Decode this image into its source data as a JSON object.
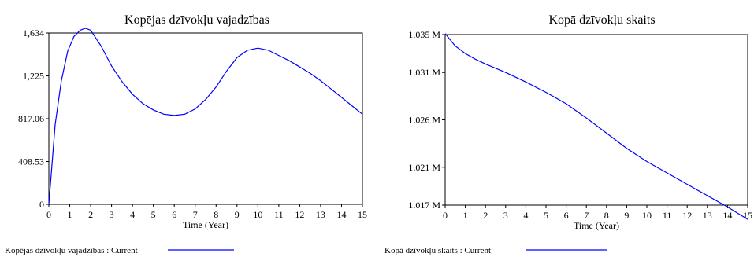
{
  "chart_data": [
    {
      "type": "line",
      "title": "Kopējas dzīvokļu vajadzības",
      "xlabel": "Time (Year)",
      "ylabel": "",
      "xlim": [
        0,
        15
      ],
      "ylim": [
        0,
        1634
      ],
      "x_ticks": [
        0,
        1,
        2,
        3,
        4,
        5,
        6,
        7,
        8,
        9,
        10,
        11,
        12,
        13,
        14,
        15
      ],
      "x_tick_labels": [
        "0",
        "1",
        "2",
        "3",
        "4",
        "5",
        "6",
        "7",
        "8",
        "9",
        "10",
        "11",
        "12",
        "13",
        "14",
        "15"
      ],
      "y_ticks": [
        0,
        408.53,
        817.06,
        1225,
        1634
      ],
      "y_tick_labels": [
        "0",
        "408.53",
        "817.06",
        "1,225",
        "1,634"
      ],
      "grid": false,
      "legend_position": "bottom",
      "legend_text": "Kopējas dzīvokļu vajadzības : Current",
      "line_color": "#0000ff",
      "series": [
        {
          "x": [
            0,
            0.3,
            0.6,
            0.9,
            1.2,
            1.5,
            1.75,
            2,
            2.5,
            3,
            3.5,
            4,
            4.5,
            5,
            5.5,
            6,
            6.5,
            7,
            7.5,
            8,
            8.5,
            9,
            9.5,
            10,
            10.5,
            11,
            11.5,
            12,
            12.5,
            13,
            13.5,
            14,
            14.5,
            15
          ],
          "y": [
            0,
            760,
            1180,
            1460,
            1600,
            1660,
            1680,
            1660,
            1510,
            1320,
            1170,
            1050,
            960,
            900,
            860,
            848,
            860,
            910,
            1000,
            1120,
            1270,
            1400,
            1470,
            1490,
            1470,
            1420,
            1370,
            1310,
            1250,
            1180,
            1100,
            1020,
            940,
            860
          ]
        }
      ]
    },
    {
      "type": "line",
      "title": "Kopā dzīvokļu skaits",
      "xlabel": "Time (Year)",
      "ylabel": "",
      "xlim": [
        0,
        15
      ],
      "ylim": [
        1.017,
        1.035
      ],
      "x_ticks": [
        0,
        1,
        2,
        3,
        4,
        5,
        6,
        7,
        8,
        9,
        10,
        11,
        12,
        13,
        14,
        15
      ],
      "x_tick_labels": [
        "0",
        "1",
        "2",
        "3",
        "4",
        "5",
        "6",
        "7",
        "8",
        "9",
        "10",
        "11",
        "12",
        "13",
        "14",
        "15"
      ],
      "y_ticks": [
        1.017,
        1.021,
        1.026,
        1.031,
        1.035
      ],
      "y_tick_labels": [
        "1.017 M",
        "1.021 M",
        "1.026 M",
        "1.031 M",
        "1.035 M"
      ],
      "grid": false,
      "legend_position": "bottom",
      "legend_text": "Kopā dzīvokļu skaits : Current",
      "line_color": "#0000ff",
      "series": [
        {
          "x": [
            0,
            0.5,
            1,
            1.5,
            2,
            3,
            4,
            5,
            6,
            7,
            8,
            9,
            10,
            11,
            12,
            13,
            14,
            15
          ],
          "y": [
            1.0351,
            1.0338,
            1.033,
            1.0324,
            1.0319,
            1.031,
            1.03,
            1.0289,
            1.0277,
            1.0262,
            1.0246,
            1.023,
            1.0216,
            1.0204,
            1.0192,
            1.018,
            1.0168,
            1.0155
          ]
        }
      ]
    }
  ]
}
